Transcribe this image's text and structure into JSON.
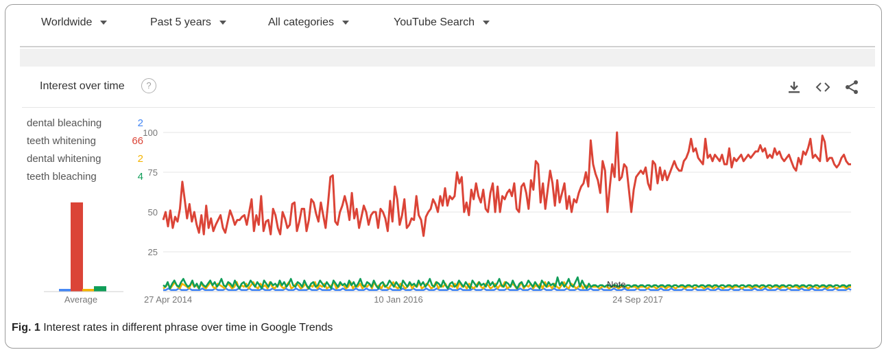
{
  "filters": [
    {
      "label": "Worldwide"
    },
    {
      "label": "Past 5 years"
    },
    {
      "label": "All categories"
    },
    {
      "label": "YouTube Search"
    }
  ],
  "card": {
    "title": "Interest over time",
    "help_icon": "?",
    "icons": [
      "download-icon",
      "embed-icon",
      "share-icon"
    ]
  },
  "average_label": "Average",
  "note_label": "Note",
  "caption": {
    "prefix": "Fig. 1",
    "text": "Interest rates in different phrase over time in Google Trends"
  },
  "colors": {
    "dental_bleaching": "#4285f4",
    "teeth_whitening": "#db4437",
    "dental_whitening": "#f4b400",
    "teeth_bleaching": "#0f9d58"
  },
  "chart_data": {
    "type": "line",
    "x_start": "27 Apr 2014",
    "x_tick_labels": [
      "27 Apr 2014",
      "10 Jan 2016",
      "24 Sep 2017"
    ],
    "ylim": [
      0,
      100
    ],
    "y_ticks": [
      25,
      50,
      75,
      100
    ],
    "grid": true,
    "legend_position": "left",
    "series": [
      {
        "name": "dental bleaching",
        "average": 2,
        "color": "#4285f4",
        "values": [
          1,
          1,
          2,
          1,
          1,
          1,
          2,
          1,
          1,
          1,
          2,
          1,
          1,
          1,
          1,
          2,
          1,
          1,
          1,
          1,
          2,
          1,
          1,
          1,
          2,
          1,
          1,
          1,
          1,
          2,
          1,
          1,
          1,
          2,
          1,
          1,
          1,
          1,
          2,
          1,
          1,
          1,
          2,
          1,
          1,
          1,
          1,
          2,
          1,
          1,
          1,
          2,
          1,
          1,
          1,
          1,
          2,
          1,
          1,
          1,
          2,
          1,
          1,
          1,
          1,
          2,
          1,
          1,
          1,
          2,
          1,
          1,
          1,
          1,
          2,
          1,
          1,
          1,
          2,
          1,
          1,
          1,
          1,
          2,
          1,
          1,
          1,
          2,
          1,
          1,
          1,
          1,
          2,
          1,
          1,
          1,
          2,
          1,
          1,
          1,
          1,
          2,
          1,
          1,
          1,
          2,
          1,
          1,
          1,
          1,
          2,
          1,
          1,
          1,
          2,
          1,
          1,
          1,
          1,
          2,
          1,
          1,
          1,
          2,
          1,
          1,
          1,
          1,
          2,
          1,
          1,
          1,
          2,
          1,
          1,
          1,
          1,
          2,
          1,
          1,
          1,
          2,
          1,
          1,
          1,
          1,
          2,
          1,
          1,
          1,
          2,
          1,
          1,
          1,
          1,
          2,
          1,
          1,
          1,
          2,
          1,
          1,
          1,
          1,
          2,
          1,
          1,
          1,
          2,
          1,
          1,
          1,
          1,
          2,
          1,
          1,
          1,
          2,
          1,
          1,
          1,
          1,
          2,
          1,
          1,
          1,
          2,
          1,
          1,
          1,
          1,
          2,
          1,
          1,
          1,
          2,
          1,
          1,
          1,
          1,
          2,
          1,
          1,
          1,
          2,
          1,
          1,
          1,
          1,
          2,
          1,
          1,
          1,
          2,
          1,
          1,
          1,
          1,
          2,
          1,
          1,
          1,
          2,
          1,
          1,
          1,
          1,
          2,
          1,
          1,
          1,
          2,
          1,
          1,
          1,
          1,
          2,
          1,
          1,
          1,
          2,
          1,
          1,
          1,
          1,
          2,
          1,
          1,
          1,
          2,
          1,
          1,
          1,
          1,
          2,
          1,
          1,
          1,
          2,
          1,
          1,
          1,
          1,
          2,
          1
        ]
      },
      {
        "name": "teeth whitening",
        "average": 66,
        "color": "#db4437",
        "values": [
          45,
          50,
          41,
          51,
          40,
          47,
          44,
          52,
          69,
          58,
          46,
          55,
          44,
          50,
          42,
          37,
          48,
          36,
          54,
          40,
          46,
          38,
          42,
          45,
          48,
          40,
          37,
          44,
          51,
          47,
          42,
          45,
          45,
          47,
          48,
          42,
          50,
          58,
          38,
          48,
          42,
          60,
          38,
          44,
          45,
          36,
          52,
          48,
          40,
          36,
          50,
          46,
          40,
          42,
          55,
          56,
          38,
          44,
          52,
          52,
          38,
          45,
          58,
          56,
          49,
          44,
          56,
          48,
          40,
          55,
          72,
          73,
          44,
          42,
          50,
          54,
          60,
          54,
          45,
          62,
          46,
          52,
          40,
          47,
          54,
          50,
          42,
          48,
          50,
          50,
          40,
          52,
          50,
          46,
          38,
          57,
          44,
          66,
          58,
          42,
          48,
          58,
          40,
          42,
          46,
          45,
          60,
          48,
          45,
          35,
          47,
          50,
          52,
          58,
          55,
          50,
          60,
          54,
          65,
          54,
          60,
          58,
          60,
          75,
          68,
          72,
          50,
          56,
          48,
          64,
          58,
          68,
          60,
          56,
          64,
          52,
          50,
          62,
          68,
          50,
          66,
          50,
          60,
          58,
          62,
          64,
          60,
          68,
          52,
          50,
          66,
          68,
          62,
          52,
          70,
          64,
          82,
          80,
          56,
          68,
          52,
          64,
          76,
          68,
          54,
          70,
          56,
          62,
          68,
          52,
          60,
          50,
          58,
          56,
          62,
          66,
          68,
          75,
          66,
          95,
          80,
          74,
          70,
          62,
          82,
          76,
          50,
          66,
          80,
          72,
          100,
          70,
          72,
          80,
          78,
          64,
          50,
          64,
          72,
          74,
          76,
          74,
          78,
          68,
          64,
          82,
          80,
          68,
          78,
          70,
          76,
          70,
          74,
          78,
          82,
          78,
          76,
          76,
          82,
          84,
          88,
          96,
          88,
          90,
          84,
          82,
          80,
          96,
          84,
          86,
          82,
          86,
          84,
          82,
          86,
          80,
          80,
          90,
          78,
          84,
          82,
          84,
          86,
          82,
          84,
          86,
          84,
          86,
          88,
          88,
          92,
          88,
          90,
          84,
          86,
          84,
          90,
          86,
          88,
          84,
          82,
          84,
          86,
          82,
          78,
          76,
          84,
          80,
          88,
          86,
          90,
          96,
          84,
          86,
          84,
          82,
          98,
          94,
          82,
          84,
          84,
          80,
          78,
          80,
          84,
          86,
          82,
          80,
          80
        ]
      },
      {
        "name": "dental whitening",
        "average": 2,
        "color": "#f4b400",
        "values": [
          2,
          3,
          5,
          2,
          4,
          6,
          3,
          2,
          5,
          4,
          3,
          2,
          6,
          3,
          4,
          2,
          5,
          3,
          2,
          4,
          6,
          3,
          2,
          5,
          4,
          3,
          2,
          5,
          4,
          2,
          3,
          6,
          2,
          4,
          3,
          5,
          2,
          4,
          6,
          3,
          2,
          5,
          3,
          4,
          2,
          6,
          3,
          2,
          4,
          5,
          3,
          2,
          4,
          6,
          2,
          3,
          5,
          4,
          2,
          3,
          5,
          2,
          4,
          3,
          6,
          2,
          4,
          3,
          5,
          2,
          3,
          4,
          6,
          2,
          3,
          5,
          4,
          2,
          3,
          6,
          2,
          4,
          3,
          5,
          2,
          4,
          3,
          5,
          2,
          6,
          3,
          4,
          2,
          5,
          3,
          2,
          4,
          6,
          3,
          2,
          5,
          4,
          2,
          3,
          5,
          2,
          4,
          3,
          6,
          2,
          3,
          5,
          4,
          2,
          3,
          6,
          2,
          4,
          3,
          5,
          2,
          4,
          3,
          5,
          2,
          6,
          3,
          4,
          2,
          5,
          3,
          2,
          4,
          6,
          3,
          2,
          5,
          4,
          2,
          3,
          5,
          2,
          4,
          3,
          6,
          2,
          3,
          5,
          4,
          2,
          3,
          6,
          2,
          4,
          3,
          5,
          2,
          4,
          3,
          5,
          2,
          6,
          3,
          4,
          2,
          5,
          3,
          2,
          4,
          6,
          3,
          2,
          5,
          4,
          2,
          3,
          5,
          2,
          4,
          3,
          3,
          3,
          3,
          3,
          2,
          3,
          3,
          3,
          2,
          3,
          3,
          3,
          2,
          3,
          3,
          3,
          2,
          3,
          3,
          3,
          2,
          3,
          3,
          3,
          2,
          3,
          3,
          3,
          2,
          3,
          3,
          3,
          2,
          3,
          3,
          3,
          2,
          3,
          3,
          3,
          2,
          3,
          3,
          3,
          2,
          3,
          3,
          3,
          2,
          3,
          3,
          3,
          2,
          3,
          3,
          3,
          2,
          3,
          3,
          3,
          2,
          3,
          3,
          3,
          2,
          3,
          3,
          3,
          2,
          3,
          3,
          3,
          2,
          3,
          3,
          3,
          2,
          3,
          3,
          3,
          2,
          3,
          3,
          3,
          2,
          3,
          3,
          3,
          2,
          3,
          3,
          3,
          2,
          3,
          3,
          3,
          2,
          3,
          3,
          3,
          2,
          3,
          3,
          3,
          2,
          3,
          3,
          3,
          2,
          3,
          3
        ]
      },
      {
        "name": "teeth bleaching",
        "average": 4,
        "color": "#0f9d58",
        "values": [
          4,
          3,
          6,
          2,
          5,
          7,
          4,
          3,
          6,
          8,
          5,
          3,
          4,
          7,
          3,
          5,
          2,
          6,
          4,
          3,
          5,
          7,
          4,
          6,
          3,
          5,
          8,
          4,
          3,
          6,
          5,
          3,
          7,
          4,
          2,
          5,
          6,
          3,
          4,
          7,
          5,
          3,
          6,
          4,
          2,
          7,
          5,
          3,
          6,
          4,
          5,
          3,
          7,
          4,
          6,
          3,
          5,
          8,
          4,
          3,
          6,
          5,
          3,
          7,
          4,
          2,
          5,
          6,
          3,
          4,
          7,
          5,
          3,
          6,
          4,
          2,
          7,
          5,
          3,
          6,
          4,
          5,
          3,
          7,
          4,
          6,
          3,
          5,
          8,
          4,
          3,
          6,
          5,
          3,
          7,
          4,
          2,
          5,
          6,
          3,
          4,
          7,
          5,
          3,
          6,
          4,
          2,
          7,
          5,
          3,
          6,
          4,
          5,
          3,
          7,
          4,
          6,
          3,
          5,
          8,
          4,
          3,
          6,
          5,
          3,
          7,
          4,
          2,
          5,
          6,
          3,
          4,
          7,
          5,
          3,
          6,
          4,
          2,
          7,
          5,
          3,
          6,
          4,
          5,
          3,
          7,
          4,
          6,
          3,
          5,
          8,
          4,
          3,
          6,
          5,
          3,
          7,
          4,
          2,
          5,
          6,
          3,
          4,
          7,
          5,
          3,
          6,
          4,
          2,
          7,
          5,
          3,
          6,
          4,
          5,
          3,
          9,
          4,
          6,
          3,
          5,
          8,
          4,
          3,
          6,
          9,
          3,
          7,
          4,
          2,
          5,
          3,
          4,
          4,
          3,
          4,
          4,
          3,
          4,
          4,
          3,
          4,
          4,
          3,
          4,
          4,
          3,
          4,
          4,
          3,
          4,
          4,
          3,
          4,
          4,
          3,
          4,
          4,
          3,
          4,
          4,
          3,
          4,
          4,
          3,
          4,
          4,
          3,
          4,
          4,
          3,
          4,
          4,
          3,
          4,
          4,
          3,
          4,
          4,
          3,
          4,
          4,
          3,
          4,
          4,
          3,
          4,
          4,
          3,
          4,
          4,
          3,
          4,
          4,
          3,
          4,
          4,
          3,
          4,
          4,
          3,
          4,
          4,
          3,
          4,
          4,
          3,
          4,
          4,
          3,
          4,
          4,
          3,
          4,
          4,
          3,
          4,
          4,
          3,
          4,
          4,
          3,
          4,
          4,
          3,
          4,
          4,
          3,
          4,
          4,
          3,
          4,
          4,
          3,
          4,
          4,
          3,
          4,
          4,
          3,
          4,
          4,
          3,
          4,
          4,
          3,
          4,
          4
        ]
      }
    ]
  }
}
